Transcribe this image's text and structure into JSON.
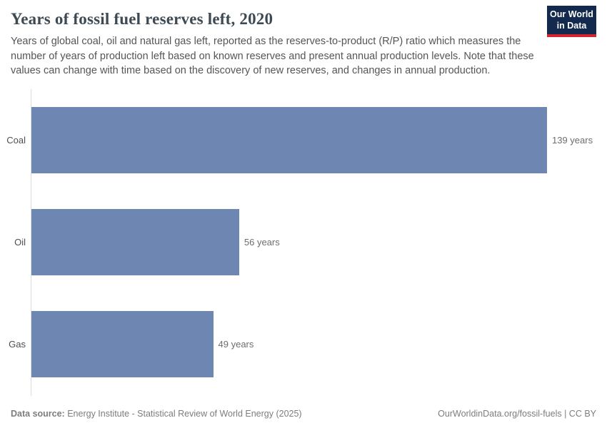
{
  "header": {
    "title": "Years of fossil fuel reserves left, 2020",
    "subtitle": "Years of global coal, oil and natural gas left, reported as the reserves-to-product (R/P) ratio which measures the number of years of production left based on known reserves and present annual production levels. Note that these values can change with time based on the discovery of new reserves, and changes in annual production.",
    "logo": {
      "line1": "Our World",
      "line2": "in Data",
      "bg_color": "#132a4e",
      "accent_color": "#d2262c"
    }
  },
  "chart_data": {
    "type": "bar",
    "orientation": "horizontal",
    "title": "Years of fossil fuel reserves left, 2020",
    "categories": [
      "Coal",
      "Oil",
      "Gas"
    ],
    "values": [
      139,
      56,
      49
    ],
    "value_labels": [
      "139 years",
      "56 years",
      "49 years"
    ],
    "unit": "years",
    "xlabel": "",
    "ylabel": "",
    "xlim": [
      0,
      139
    ],
    "grid": false,
    "legend": false,
    "bar_color": "#6e87b2",
    "axis_line_color": "#dcdcdc"
  },
  "footer": {
    "source_label": "Data source:",
    "source_text": " Energy Institute - Statistical Review of World Energy (2025)",
    "attribution": "OurWorldinData.org/fossil-fuels | CC BY"
  }
}
